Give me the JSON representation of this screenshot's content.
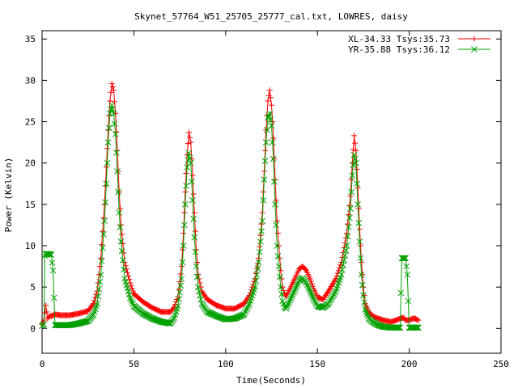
{
  "chart_data": {
    "type": "line",
    "title": "Skynet_57764_W51_25705_25777_cal.txt, LOWRES, daisy",
    "xlabel": "Time(Seconds)",
    "ylabel": "Power (Kelvin)",
    "xlim": [
      0,
      250
    ],
    "ylim": [
      -3,
      36
    ],
    "xticks": [
      0,
      50,
      100,
      150,
      200,
      250
    ],
    "yticks": [
      0,
      5,
      10,
      15,
      20,
      25,
      30,
      35
    ],
    "grid": false,
    "legend_position": "top-right",
    "series": [
      {
        "name": "XL-34.33 Tsys:35.73",
        "color": "#ff0000",
        "marker": "plus",
        "x": [
          0,
          1,
          2,
          3,
          4,
          5,
          7,
          10,
          15,
          20,
          25,
          28,
          30,
          32,
          34,
          35,
          36,
          37,
          38,
          39,
          40,
          41,
          42,
          43,
          45,
          48,
          50,
          55,
          60,
          65,
          70,
          72,
          74,
          76,
          77,
          78,
          79,
          80,
          81,
          82,
          83,
          84,
          85,
          87,
          90,
          95,
          100,
          105,
          110,
          113,
          116,
          118,
          120,
          121,
          122,
          123,
          124,
          125,
          126,
          127,
          128,
          130,
          131,
          132,
          133,
          135,
          138,
          140,
          142,
          144,
          146,
          148,
          150,
          153,
          156,
          160,
          163,
          166,
          168,
          169,
          170,
          171,
          172,
          173,
          174,
          175,
          176,
          178,
          180,
          183,
          186,
          190,
          193,
          195,
          197,
          198,
          199,
          200,
          202,
          203,
          205
        ],
        "y": [
          0.5,
          1.0,
          2.8,
          1.2,
          1.5,
          1.5,
          1.7,
          1.6,
          1.6,
          1.8,
          2.1,
          3.0,
          4.5,
          8.5,
          15.0,
          19.5,
          24.0,
          27.5,
          29.6,
          28.8,
          26.0,
          21.5,
          16.5,
          12.5,
          8.0,
          5.5,
          4.2,
          3.2,
          2.5,
          2.0,
          2.0,
          2.6,
          3.8,
          7.5,
          11.5,
          16.5,
          21.0,
          23.7,
          22.5,
          18.5,
          14.0,
          9.5,
          6.5,
          4.5,
          3.5,
          2.8,
          2.4,
          2.4,
          3.0,
          4.0,
          6.0,
          8.5,
          14.0,
          19.0,
          24.0,
          27.5,
          28.8,
          27.0,
          23.0,
          18.0,
          13.0,
          7.0,
          5.0,
          4.2,
          3.9,
          4.8,
          6.2,
          7.2,
          7.5,
          7.0,
          6.0,
          4.8,
          3.8,
          3.5,
          4.5,
          6.0,
          8.0,
          11.5,
          16.0,
          20.0,
          23.3,
          21.5,
          17.0,
          12.0,
          8.0,
          5.0,
          3.0,
          2.0,
          1.5,
          1.2,
          1.0,
          0.8,
          1.0,
          1.2,
          1.3,
          1.0,
          1.0,
          1.0,
          1.2,
          1.2,
          1.0
        ]
      },
      {
        "name": "YR-35.88 Tsys:36.12",
        "color": "#00a000",
        "marker": "cross",
        "x": [
          0,
          1,
          1.5,
          2,
          3,
          4,
          5,
          6,
          7,
          10,
          15,
          20,
          25,
          28,
          30,
          32,
          34,
          35,
          36,
          37,
          38,
          39,
          40,
          41,
          42,
          43,
          45,
          48,
          50,
          55,
          60,
          65,
          70,
          72,
          74,
          76,
          77,
          78,
          79,
          80,
          81,
          82,
          83,
          84,
          85,
          87,
          90,
          95,
          100,
          105,
          110,
          113,
          116,
          118,
          120,
          121,
          122,
          123,
          124,
          125,
          126,
          127,
          128,
          130,
          131,
          132,
          133,
          135,
          138,
          140,
          142,
          144,
          146,
          148,
          150,
          153,
          156,
          160,
          163,
          166,
          168,
          169,
          170,
          171,
          172,
          173,
          174,
          175,
          176,
          178,
          180,
          183,
          186,
          190,
          193,
          195,
          196,
          197,
          198,
          199,
          200,
          201,
          203,
          205
        ],
        "y": [
          0.3,
          0.5,
          8.8,
          9.0,
          9.0,
          9.0,
          8.9,
          7.0,
          0.4,
          0.4,
          0.4,
          0.6,
          0.9,
          1.7,
          3.0,
          6.5,
          13.0,
          17.5,
          22.5,
          26.0,
          27.0,
          26.0,
          23.5,
          19.0,
          14.0,
          10.5,
          6.0,
          3.7,
          2.7,
          1.8,
          1.2,
          0.8,
          0.6,
          1.3,
          2.7,
          6.0,
          10.0,
          15.0,
          19.5,
          21.2,
          20.0,
          15.5,
          11.0,
          7.5,
          5.0,
          3.0,
          2.0,
          1.5,
          1.1,
          1.2,
          1.7,
          3.0,
          5.0,
          8.0,
          13.0,
          18.0,
          22.5,
          25.5,
          26.0,
          24.5,
          20.5,
          15.0,
          10.0,
          5.0,
          3.3,
          2.6,
          2.4,
          3.4,
          4.8,
          5.8,
          6.1,
          5.5,
          4.5,
          3.5,
          2.7,
          2.5,
          3.0,
          4.5,
          6.5,
          10.0,
          14.5,
          18.5,
          21.0,
          20.0,
          15.0,
          10.5,
          6.5,
          4.0,
          2.3,
          1.2,
          0.8,
          0.4,
          0.2,
          0.1,
          0.1,
          0.1,
          8.5,
          8.5,
          8.5,
          6.5,
          0.1,
          0.1,
          0.1,
          0.1
        ]
      }
    ]
  }
}
